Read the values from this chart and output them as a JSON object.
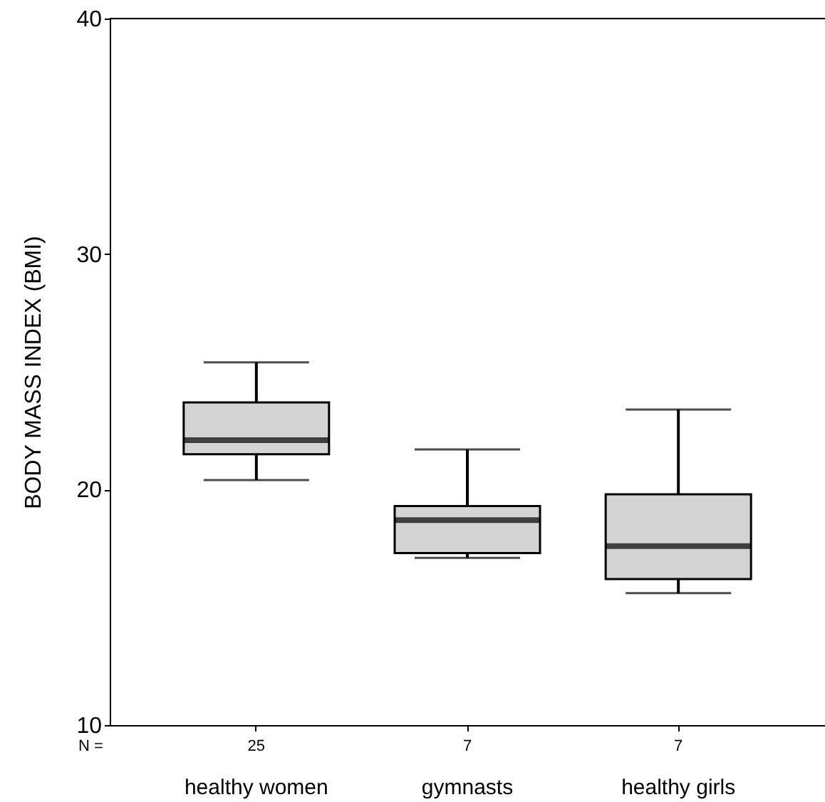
{
  "chart_data": {
    "type": "box",
    "ylabel": "BODY MASS INDEX (BMI)",
    "categories": [
      "healthy women",
      "gymnasts",
      "healthy girls"
    ],
    "boxes": [
      {
        "low": 20.4,
        "q1": 21.5,
        "median": 22.1,
        "q3": 23.7,
        "high": 25.4
      },
      {
        "low": 17.1,
        "q1": 17.3,
        "median": 18.7,
        "q3": 19.3,
        "high": 21.7
      },
      {
        "low": 15.6,
        "q1": 16.2,
        "median": 17.6,
        "q3": 19.8,
        "high": 23.4
      }
    ],
    "color": "#d4d4d4",
    "ylim": [
      10,
      40
    ],
    "yticks": [
      10,
      20,
      30,
      40
    ],
    "grid": false,
    "annotations": [
      "N =",
      "25",
      "7",
      "7"
    ]
  }
}
